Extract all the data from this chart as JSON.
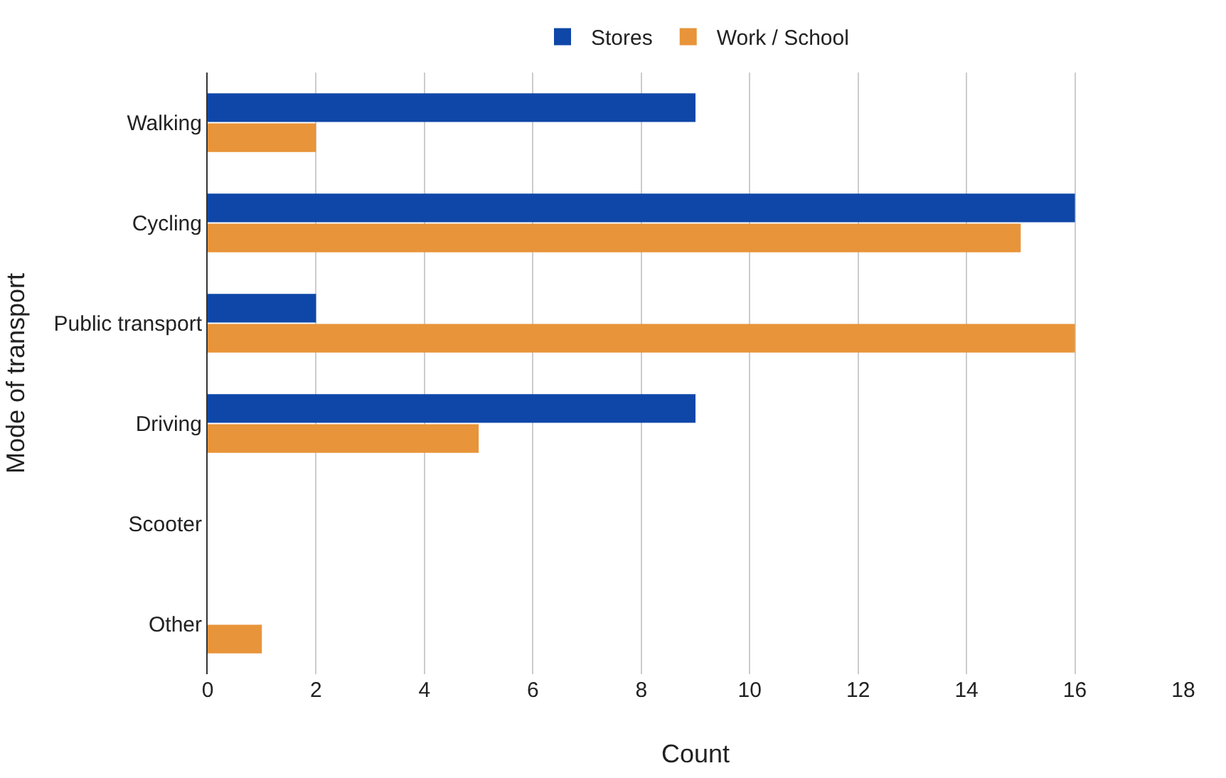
{
  "chart_data": {
    "type": "bar",
    "orientation": "horizontal",
    "xlabel": "Count",
    "ylabel": "Mode of transport",
    "categories": [
      "Walking",
      "Cycling",
      "Public transport",
      "Driving",
      "Scooter",
      "Other"
    ],
    "series": [
      {
        "name": "Stores",
        "color": "#0f47a8",
        "values": [
          9,
          16,
          2,
          9,
          0,
          0
        ]
      },
      {
        "name": "Work / School",
        "color": "#e8943a",
        "values": [
          2,
          15,
          16,
          5,
          0,
          1
        ]
      }
    ],
    "xlim": [
      0,
      18
    ],
    "xticks": [
      0,
      2,
      4,
      6,
      8,
      10,
      12,
      14,
      16,
      18
    ],
    "grid": "x",
    "legend": "top"
  }
}
